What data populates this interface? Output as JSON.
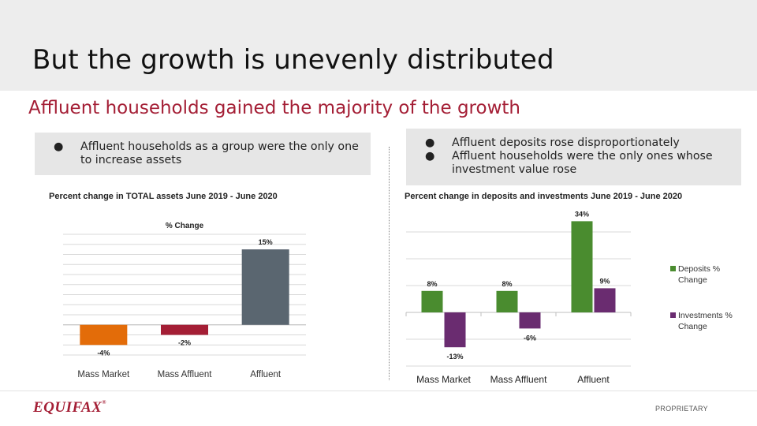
{
  "title": "But the growth is unevenly distributed",
  "subtitle": "Affluent households gained the majority of the growth",
  "left_box": {
    "bullets": [
      "Affluent households as a group were the only one to increase assets"
    ]
  },
  "right_box": {
    "bullets": [
      "Affluent deposits rose disproportionately",
      "Affluent households were the only ones whose investment value rose"
    ]
  },
  "bullet_glyph": "●",
  "footer": {
    "logo_text": "EQUIFAX",
    "logo_mark": "®",
    "proprietary": "PROPRIETARY"
  },
  "colors": {
    "brand": "#a41e35",
    "mass_market": "#e36c09",
    "mass_affluent": "#a41e35",
    "affluent": "#5a6670",
    "deposits": "#4a8c2f",
    "investments": "#6a2c70"
  },
  "chart_data": [
    {
      "type": "bar",
      "caption": "Percent change in TOTAL assets June 2019 - June 2020",
      "title": "% Change",
      "categories": [
        "Mass Market",
        "Mass Affluent",
        "Affluent"
      ],
      "values": [
        -4,
        -2,
        15
      ],
      "data_labels": [
        "-4%",
        "-2%",
        "15%"
      ],
      "ylim": [
        -6,
        18
      ],
      "gridlines": true,
      "legend": "none"
    },
    {
      "type": "bar",
      "caption": "Percent change in deposits and investments  June 2019 - June 2020",
      "title": "",
      "categories": [
        "Mass Market",
        "Mass Affluent",
        "Affluent"
      ],
      "series": [
        {
          "name": "Deposits % Change",
          "values": [
            8,
            8,
            34
          ],
          "data_labels": [
            "8%",
            "8%",
            "34%"
          ]
        },
        {
          "name": "Investments % Change",
          "values": [
            -13,
            -6,
            9
          ],
          "data_labels": [
            "-13%",
            "-6%",
            "9%"
          ]
        }
      ],
      "legend_labels": [
        [
          "Deposits %",
          "Change"
        ],
        [
          "Investments %",
          "Change"
        ]
      ],
      "ylim": [
        -20,
        35
      ],
      "gridlines": true,
      "legend": "right"
    }
  ]
}
